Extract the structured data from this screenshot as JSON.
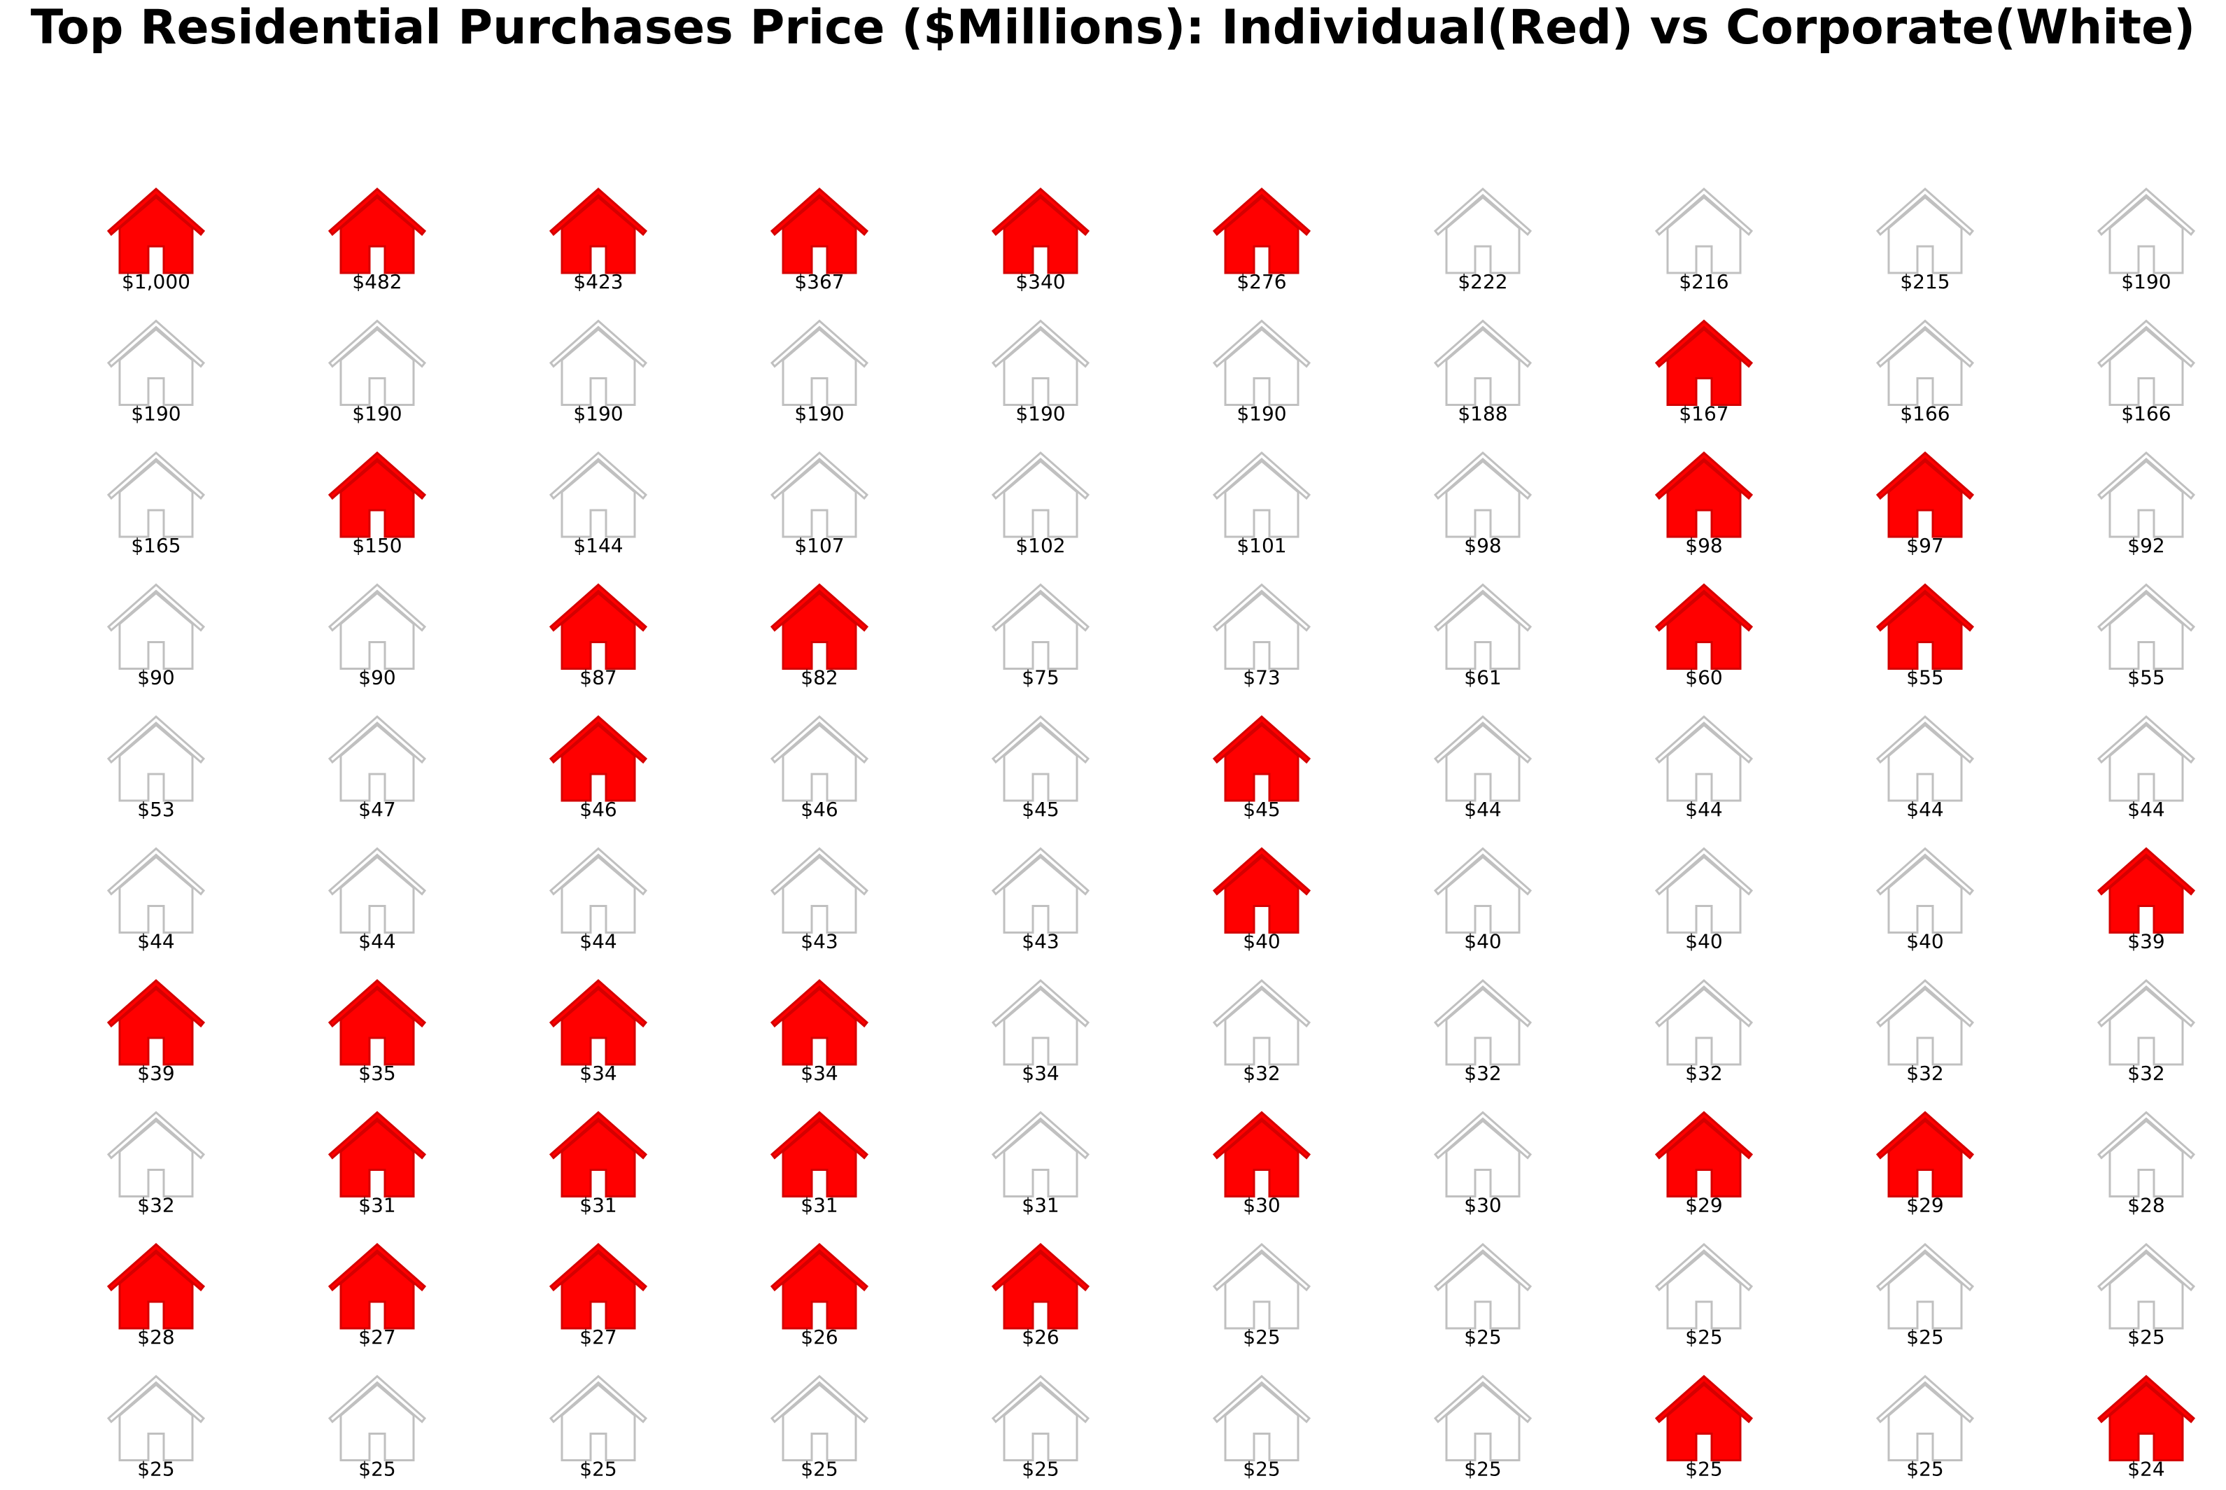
{
  "chart_data": {
    "type": "pictogram",
    "title": "Top Residential Purchases Price ($Millions): Individual(Red) vs Corporate(White)",
    "colors": {
      "individual": "#ff0000",
      "corporate": "#ffffff",
      "corporate_outline": "#c0c0c0"
    },
    "icon": "house-icon",
    "items": [
      {
        "value": 1000,
        "label": "$1,000",
        "buyer": "individual"
      },
      {
        "value": 482,
        "label": "$482",
        "buyer": "individual"
      },
      {
        "value": 423,
        "label": "$423",
        "buyer": "individual"
      },
      {
        "value": 367,
        "label": "$367",
        "buyer": "individual"
      },
      {
        "value": 340,
        "label": "$340",
        "buyer": "individual"
      },
      {
        "value": 276,
        "label": "$276",
        "buyer": "individual"
      },
      {
        "value": 222,
        "label": "$222",
        "buyer": "corporate"
      },
      {
        "value": 216,
        "label": "$216",
        "buyer": "corporate"
      },
      {
        "value": 215,
        "label": "$215",
        "buyer": "corporate"
      },
      {
        "value": 190,
        "label": "$190",
        "buyer": "corporate"
      },
      {
        "value": 190,
        "label": "$190",
        "buyer": "corporate"
      },
      {
        "value": 190,
        "label": "$190",
        "buyer": "corporate"
      },
      {
        "value": 190,
        "label": "$190",
        "buyer": "corporate"
      },
      {
        "value": 190,
        "label": "$190",
        "buyer": "corporate"
      },
      {
        "value": 190,
        "label": "$190",
        "buyer": "corporate"
      },
      {
        "value": 190,
        "label": "$190",
        "buyer": "corporate"
      },
      {
        "value": 188,
        "label": "$188",
        "buyer": "corporate"
      },
      {
        "value": 167,
        "label": "$167",
        "buyer": "individual"
      },
      {
        "value": 166,
        "label": "$166",
        "buyer": "corporate"
      },
      {
        "value": 166,
        "label": "$166",
        "buyer": "corporate"
      },
      {
        "value": 165,
        "label": "$165",
        "buyer": "corporate"
      },
      {
        "value": 150,
        "label": "$150",
        "buyer": "individual"
      },
      {
        "value": 144,
        "label": "$144",
        "buyer": "corporate"
      },
      {
        "value": 107,
        "label": "$107",
        "buyer": "corporate"
      },
      {
        "value": 102,
        "label": "$102",
        "buyer": "corporate"
      },
      {
        "value": 101,
        "label": "$101",
        "buyer": "corporate"
      },
      {
        "value": 98,
        "label": "$98",
        "buyer": "corporate"
      },
      {
        "value": 98,
        "label": "$98",
        "buyer": "individual"
      },
      {
        "value": 97,
        "label": "$97",
        "buyer": "individual"
      },
      {
        "value": 92,
        "label": "$92",
        "buyer": "corporate"
      },
      {
        "value": 90,
        "label": "$90",
        "buyer": "corporate"
      },
      {
        "value": 90,
        "label": "$90",
        "buyer": "corporate"
      },
      {
        "value": 87,
        "label": "$87",
        "buyer": "individual"
      },
      {
        "value": 82,
        "label": "$82",
        "buyer": "individual"
      },
      {
        "value": 75,
        "label": "$75",
        "buyer": "corporate"
      },
      {
        "value": 73,
        "label": "$73",
        "buyer": "corporate"
      },
      {
        "value": 61,
        "label": "$61",
        "buyer": "corporate"
      },
      {
        "value": 60,
        "label": "$60",
        "buyer": "individual"
      },
      {
        "value": 55,
        "label": "$55",
        "buyer": "individual"
      },
      {
        "value": 55,
        "label": "$55",
        "buyer": "corporate"
      },
      {
        "value": 53,
        "label": "$53",
        "buyer": "corporate"
      },
      {
        "value": 47,
        "label": "$47",
        "buyer": "corporate"
      },
      {
        "value": 46,
        "label": "$46",
        "buyer": "individual"
      },
      {
        "value": 46,
        "label": "$46",
        "buyer": "corporate"
      },
      {
        "value": 45,
        "label": "$45",
        "buyer": "corporate"
      },
      {
        "value": 45,
        "label": "$45",
        "buyer": "individual"
      },
      {
        "value": 44,
        "label": "$44",
        "buyer": "corporate"
      },
      {
        "value": 44,
        "label": "$44",
        "buyer": "corporate"
      },
      {
        "value": 44,
        "label": "$44",
        "buyer": "corporate"
      },
      {
        "value": 44,
        "label": "$44",
        "buyer": "corporate"
      },
      {
        "value": 44,
        "label": "$44",
        "buyer": "corporate"
      },
      {
        "value": 44,
        "label": "$44",
        "buyer": "corporate"
      },
      {
        "value": 44,
        "label": "$44",
        "buyer": "corporate"
      },
      {
        "value": 43,
        "label": "$43",
        "buyer": "corporate"
      },
      {
        "value": 43,
        "label": "$43",
        "buyer": "corporate"
      },
      {
        "value": 40,
        "label": "$40",
        "buyer": "individual"
      },
      {
        "value": 40,
        "label": "$40",
        "buyer": "corporate"
      },
      {
        "value": 40,
        "label": "$40",
        "buyer": "corporate"
      },
      {
        "value": 40,
        "label": "$40",
        "buyer": "corporate"
      },
      {
        "value": 39,
        "label": "$39",
        "buyer": "individual"
      },
      {
        "value": 39,
        "label": "$39",
        "buyer": "individual"
      },
      {
        "value": 35,
        "label": "$35",
        "buyer": "individual"
      },
      {
        "value": 34,
        "label": "$34",
        "buyer": "individual"
      },
      {
        "value": 34,
        "label": "$34",
        "buyer": "individual"
      },
      {
        "value": 34,
        "label": "$34",
        "buyer": "corporate"
      },
      {
        "value": 32,
        "label": "$32",
        "buyer": "corporate"
      },
      {
        "value": 32,
        "label": "$32",
        "buyer": "corporate"
      },
      {
        "value": 32,
        "label": "$32",
        "buyer": "corporate"
      },
      {
        "value": 32,
        "label": "$32",
        "buyer": "corporate"
      },
      {
        "value": 32,
        "label": "$32",
        "buyer": "corporate"
      },
      {
        "value": 32,
        "label": "$32",
        "buyer": "corporate"
      },
      {
        "value": 31,
        "label": "$31",
        "buyer": "individual"
      },
      {
        "value": 31,
        "label": "$31",
        "buyer": "individual"
      },
      {
        "value": 31,
        "label": "$31",
        "buyer": "individual"
      },
      {
        "value": 31,
        "label": "$31",
        "buyer": "corporate"
      },
      {
        "value": 30,
        "label": "$30",
        "buyer": "individual"
      },
      {
        "value": 30,
        "label": "$30",
        "buyer": "corporate"
      },
      {
        "value": 29,
        "label": "$29",
        "buyer": "individual"
      },
      {
        "value": 29,
        "label": "$29",
        "buyer": "individual"
      },
      {
        "value": 28,
        "label": "$28",
        "buyer": "corporate"
      },
      {
        "value": 28,
        "label": "$28",
        "buyer": "individual"
      },
      {
        "value": 27,
        "label": "$27",
        "buyer": "individual"
      },
      {
        "value": 27,
        "label": "$27",
        "buyer": "individual"
      },
      {
        "value": 26,
        "label": "$26",
        "buyer": "individual"
      },
      {
        "value": 26,
        "label": "$26",
        "buyer": "individual"
      },
      {
        "value": 25,
        "label": "$25",
        "buyer": "corporate"
      },
      {
        "value": 25,
        "label": "$25",
        "buyer": "corporate"
      },
      {
        "value": 25,
        "label": "$25",
        "buyer": "corporate"
      },
      {
        "value": 25,
        "label": "$25",
        "buyer": "corporate"
      },
      {
        "value": 25,
        "label": "$25",
        "buyer": "corporate"
      },
      {
        "value": 25,
        "label": "$25",
        "buyer": "corporate"
      },
      {
        "value": 25,
        "label": "$25",
        "buyer": "corporate"
      },
      {
        "value": 25,
        "label": "$25",
        "buyer": "corporate"
      },
      {
        "value": 25,
        "label": "$25",
        "buyer": "corporate"
      },
      {
        "value": 25,
        "label": "$25",
        "buyer": "corporate"
      },
      {
        "value": 25,
        "label": "$25",
        "buyer": "corporate"
      },
      {
        "value": 25,
        "label": "$25",
        "buyer": "corporate"
      },
      {
        "value": 25,
        "label": "$25",
        "buyer": "individual"
      },
      {
        "value": 25,
        "label": "$25",
        "buyer": "corporate"
      },
      {
        "value": 24,
        "label": "$24",
        "buyer": "individual"
      }
    ]
  }
}
